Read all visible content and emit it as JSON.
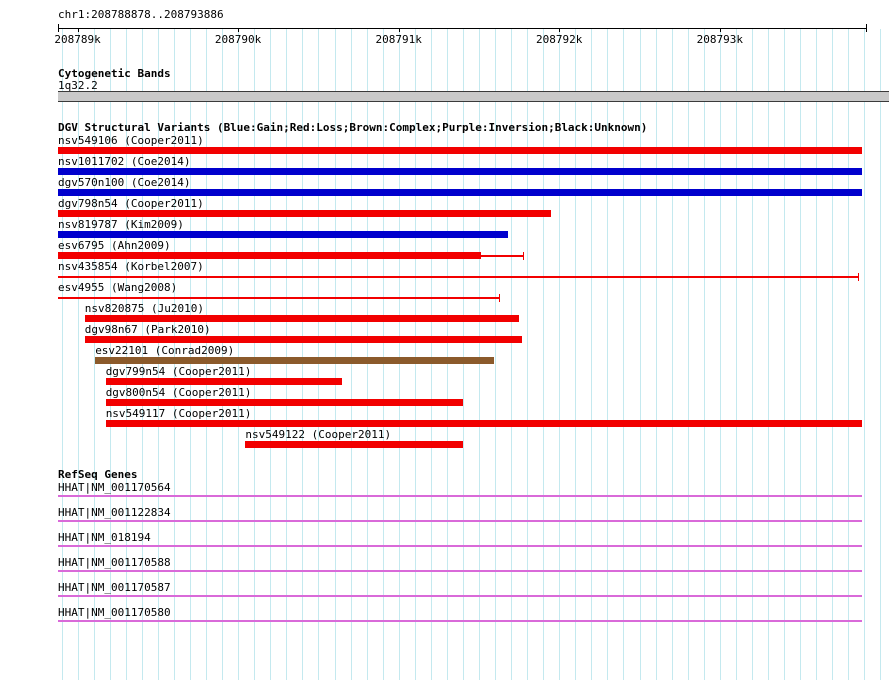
{
  "header": {
    "region": "chr1:208788878..208793886"
  },
  "sections": {
    "cytobands": {
      "title": "Cytogenetic Bands",
      "band": "1q32.2"
    },
    "variants_title": "DGV Structural Variants (Blue:Gain;Red:Loss;Brown:Complex;Purple:Inversion;Black:Unknown)",
    "genes_title": "RefSeq Genes"
  },
  "colors": {
    "grid": "#c4e9ef",
    "axis": "#000000",
    "gain": "#0000cd",
    "loss": "#f20000",
    "complex": "#8b5a2b",
    "inversion": "#800080",
    "unknown": "#000000",
    "gene": "#d96ad9",
    "cytoband_fill": "#c9c9c9",
    "cytoband_border": "#3a3a3a"
  },
  "chart_data": {
    "type": "bar",
    "orientation": "horizontal-genome-tracks",
    "title": "DGV Structural Variants (Blue:Gain;Red:Loss;Brown:Complex;Purple:Inversion;Black:Unknown)",
    "xlabel": "",
    "xlim": [
      208788878,
      208793886
    ],
    "minor_grid_interval_bp": 100,
    "grid": "on",
    "x_ticks": [
      {
        "pos": 208789000,
        "label": "208789k"
      },
      {
        "pos": 208790000,
        "label": "208790k"
      },
      {
        "pos": 208791000,
        "label": "208791k"
      },
      {
        "pos": 208792000,
        "label": "208792k"
      },
      {
        "pos": 208793000,
        "label": "208793k"
      }
    ],
    "tracks": [
      {
        "label": "nsv549106 (Cooper2011)",
        "class": "loss",
        "shape": "thick",
        "start": 208788878,
        "end": 208793886
      },
      {
        "label": "nsv1011702 (Coe2014)",
        "class": "gain",
        "shape": "thick",
        "start": 208788878,
        "end": 208793886
      },
      {
        "label": "dgv570n100 (Coe2014)",
        "class": "gain",
        "shape": "thick",
        "start": 208788878,
        "end": 208793886
      },
      {
        "label": "dgv798n54 (Cooper2011)",
        "class": "loss",
        "shape": "thick",
        "start": 208788878,
        "end": 208791950
      },
      {
        "label": "nsv819787 (Kim2009)",
        "class": "gain",
        "shape": "thick",
        "start": 208788878,
        "end": 208791680
      },
      {
        "label": "esv6795 (Ahn2009)",
        "class": "loss",
        "shape": "thick",
        "start": 208788878,
        "end": 208791510,
        "line_end": 208791775
      },
      {
        "label": "nsv435854 (Korbel2007)",
        "class": "loss",
        "shape": "thin",
        "start": 208788878,
        "end": 208793860,
        "end_tick": true
      },
      {
        "label": "esv4955 (Wang2008)",
        "class": "loss",
        "shape": "thin",
        "start": 208788878,
        "end": 208791625,
        "end_tick": true
      },
      {
        "label": "nsv820875 (Ju2010)",
        "class": "loss",
        "shape": "thick",
        "start": 208789045,
        "end": 208791750
      },
      {
        "label": "dgv98n67 (Park2010)",
        "class": "loss",
        "shape": "thick",
        "start": 208789045,
        "end": 208791770
      },
      {
        "label": "esv22101 (Conrad2009)",
        "class": "complex",
        "shape": "thick",
        "start": 208789110,
        "end": 208791595
      },
      {
        "label": "dgv799n54 (Cooper2011)",
        "class": "loss",
        "shape": "thick",
        "start": 208789175,
        "end": 208790645
      },
      {
        "label": "dgv800n54 (Cooper2011)",
        "class": "loss",
        "shape": "thick",
        "start": 208789175,
        "end": 208791400
      },
      {
        "label": "nsv549117 (Cooper2011)",
        "class": "loss",
        "shape": "thick",
        "start": 208789175,
        "end": 208793886
      },
      {
        "label": "nsv549122 (Cooper2011)",
        "class": "loss",
        "shape": "thick",
        "start": 208790045,
        "end": 208791400
      }
    ],
    "genes": [
      {
        "label": "HHAT|NM_001170564",
        "start": 208788878,
        "end": 208793886
      },
      {
        "label": "HHAT|NM_001122834",
        "start": 208788878,
        "end": 208793886
      },
      {
        "label": "HHAT|NM_018194",
        "start": 208788878,
        "end": 208793886
      },
      {
        "label": "HHAT|NM_001170588",
        "start": 208788878,
        "end": 208793886
      },
      {
        "label": "HHAT|NM_001170587",
        "start": 208788878,
        "end": 208793886
      },
      {
        "label": "HHAT|NM_001170580",
        "start": 208788878,
        "end": 208793886
      }
    ]
  }
}
